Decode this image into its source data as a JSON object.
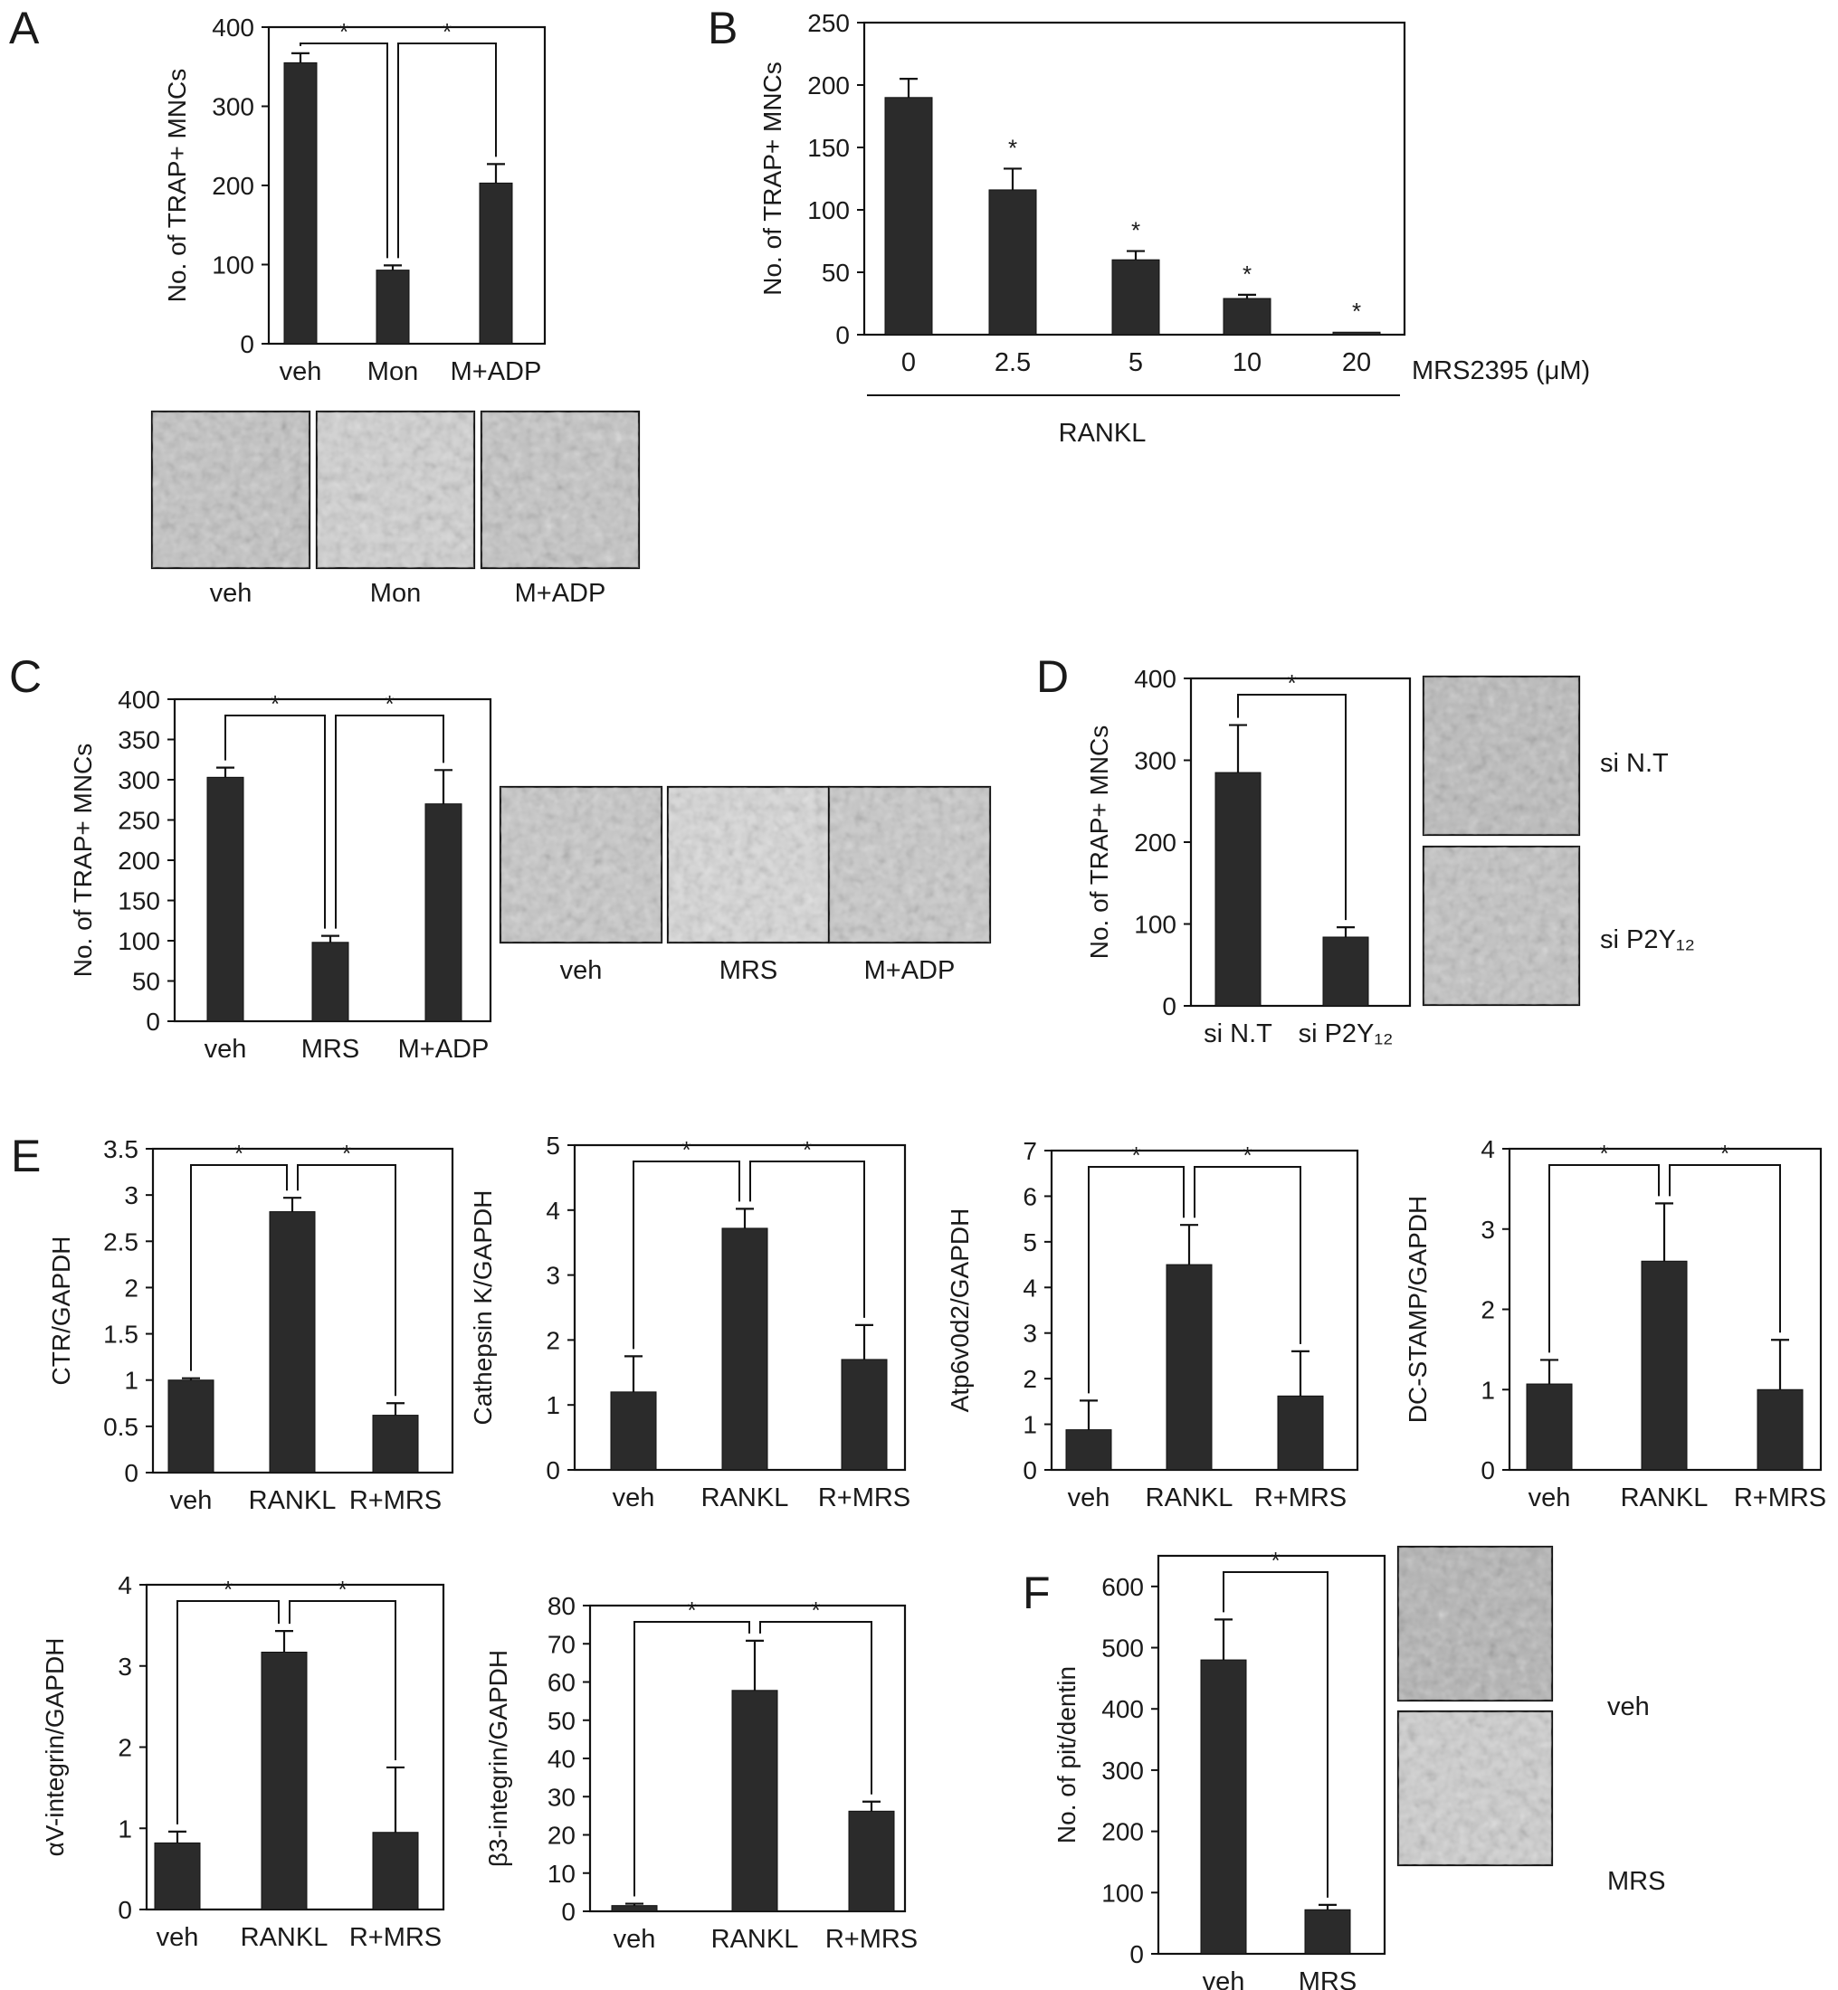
{
  "colors": {
    "bar": "#2b2b2b",
    "axis": "#111111",
    "micrograph": "#bdbdbd"
  },
  "panels": [
    {
      "id": "A",
      "label": "A"
    },
    {
      "id": "B",
      "label": "B"
    },
    {
      "id": "C",
      "label": "C"
    },
    {
      "id": "D",
      "label": "D"
    },
    {
      "id": "E",
      "label": "E"
    },
    {
      "id": "F",
      "label": "F"
    }
  ],
  "annotations": {
    "B_xlabel": "MRS2395 (μM)",
    "B_group": "RANKL",
    "significance": "*"
  },
  "micrographs": {
    "A": [
      "veh",
      "Mon",
      "M+ADP"
    ],
    "C": [
      "veh",
      "MRS",
      "M+ADP"
    ],
    "D": [
      "si N.T",
      "si P2Y₁₂"
    ],
    "F": [
      "veh",
      "MRS"
    ]
  },
  "chart_data": [
    {
      "id": "A",
      "type": "bar",
      "categories": [
        "veh",
        "Mon",
        "M+ADP"
      ],
      "values": [
        355,
        93,
        203
      ],
      "errors": [
        12,
        6,
        24
      ],
      "ylabel": "No. of  TRAP+ MNCs",
      "ylim": [
        0,
        400
      ],
      "yticks": [
        0,
        100,
        200,
        300,
        400
      ],
      "significance": [
        [
          0,
          1
        ],
        [
          1,
          2
        ]
      ]
    },
    {
      "id": "B",
      "type": "bar",
      "categories": [
        "0",
        "2.5",
        "5",
        "10",
        "20"
      ],
      "values": [
        190,
        116,
        60,
        29,
        2
      ],
      "errors": [
        15,
        17,
        7,
        3,
        0
      ],
      "ylabel": "No. of  TRAP+ MNCs",
      "ylim": [
        0,
        250
      ],
      "yticks": [
        0,
        50,
        100,
        150,
        200,
        250
      ],
      "marked": [
        1,
        2,
        3,
        4
      ]
    },
    {
      "id": "C",
      "type": "bar",
      "categories": [
        "veh",
        "MRS",
        "M+ADP"
      ],
      "values": [
        303,
        98,
        270
      ],
      "errors": [
        12,
        8,
        42
      ],
      "ylabel": "No. of TRAP+ MNCs",
      "ylim": [
        0,
        400
      ],
      "yticks": [
        0,
        50,
        100,
        150,
        200,
        250,
        300,
        350,
        400
      ],
      "significance": [
        [
          0,
          1
        ],
        [
          1,
          2
        ]
      ]
    },
    {
      "id": "D",
      "type": "bar",
      "categories": [
        "si N.T",
        "si P2Y₁₂"
      ],
      "values": [
        285,
        84
      ],
      "errors": [
        58,
        12
      ],
      "ylabel": "No. of TRAP+ MNCs",
      "ylim": [
        0,
        400
      ],
      "yticks": [
        0,
        100,
        200,
        300,
        400
      ],
      "significance": [
        [
          0,
          1
        ]
      ]
    },
    {
      "id": "E1",
      "type": "bar",
      "categories": [
        "veh",
        "RANKL",
        "R+MRS"
      ],
      "values": [
        1.0,
        2.82,
        0.62
      ],
      "errors": [
        0.02,
        0.15,
        0.13
      ],
      "ylabel": "CTR/GAPDH",
      "ylim": [
        0,
        3.5
      ],
      "yticks": [
        0,
        0.5,
        1,
        1.5,
        2,
        2.5,
        3,
        3.5
      ],
      "significance": [
        [
          0,
          1
        ],
        [
          1,
          2
        ]
      ]
    },
    {
      "id": "E2",
      "type": "bar",
      "categories": [
        "veh",
        "RANKL",
        "R+MRS"
      ],
      "values": [
        1.2,
        3.72,
        1.7
      ],
      "errors": [
        0.55,
        0.3,
        0.53
      ],
      "ylabel": "Cathepsin K/GAPDH",
      "ylim": [
        0,
        5
      ],
      "yticks": [
        0,
        1,
        2,
        3,
        4,
        5
      ],
      "significance": [
        [
          0,
          1
        ],
        [
          1,
          2
        ]
      ]
    },
    {
      "id": "E3",
      "type": "bar",
      "categories": [
        "veh",
        "RANKL",
        "R+MRS"
      ],
      "values": [
        0.88,
        4.5,
        1.62
      ],
      "errors": [
        0.64,
        0.87,
        0.98
      ],
      "ylabel": "Atp6v0d2/GAPDH",
      "ylim": [
        0,
        7
      ],
      "yticks": [
        0,
        1,
        2,
        3,
        4,
        5,
        6,
        7
      ],
      "significance": [
        [
          0,
          1
        ],
        [
          1,
          2
        ]
      ]
    },
    {
      "id": "E4",
      "type": "bar",
      "categories": [
        "veh",
        "RANKL",
        "R+MRS"
      ],
      "values": [
        1.07,
        2.6,
        1.0
      ],
      "errors": [
        0.3,
        0.72,
        0.62
      ],
      "ylabel": "DC-STAMP/GAPDH",
      "ylim": [
        0,
        4
      ],
      "yticks": [
        0,
        1,
        2,
        3,
        4
      ],
      "significance": [
        [
          0,
          1
        ],
        [
          1,
          2
        ]
      ]
    },
    {
      "id": "E5",
      "type": "bar",
      "categories": [
        "veh",
        "RANKL",
        "R+MRS"
      ],
      "values": [
        0.82,
        3.17,
        0.95
      ],
      "errors": [
        0.14,
        0.26,
        0.8
      ],
      "ylabel": "αV-integrin/GAPDH",
      "ylim": [
        0,
        4
      ],
      "yticks": [
        0,
        1,
        2,
        3,
        4
      ],
      "significance": [
        [
          0,
          1
        ],
        [
          1,
          2
        ]
      ]
    },
    {
      "id": "E6",
      "type": "bar",
      "categories": [
        "veh",
        "RANKL",
        "R+MRS"
      ],
      "values": [
        1.5,
        57.8,
        26.2
      ],
      "errors": [
        0.5,
        13.0,
        2.5
      ],
      "ylabel": "β3-integrin/GAPDH",
      "ylim": [
        0,
        80
      ],
      "yticks": [
        0,
        10,
        20,
        30,
        40,
        50,
        60,
        70,
        80
      ],
      "significance": [
        [
          0,
          1
        ],
        [
          1,
          2
        ]
      ]
    },
    {
      "id": "F",
      "type": "bar",
      "categories": [
        "veh",
        "MRS"
      ],
      "values": [
        480,
        72
      ],
      "errors": [
        66,
        8
      ],
      "ylabel": "No. of pit/dentin",
      "ylim": [
        0,
        650
      ],
      "yticks": [
        0,
        100,
        200,
        300,
        400,
        500,
        600
      ],
      "significance": [
        [
          0,
          1
        ]
      ]
    }
  ]
}
